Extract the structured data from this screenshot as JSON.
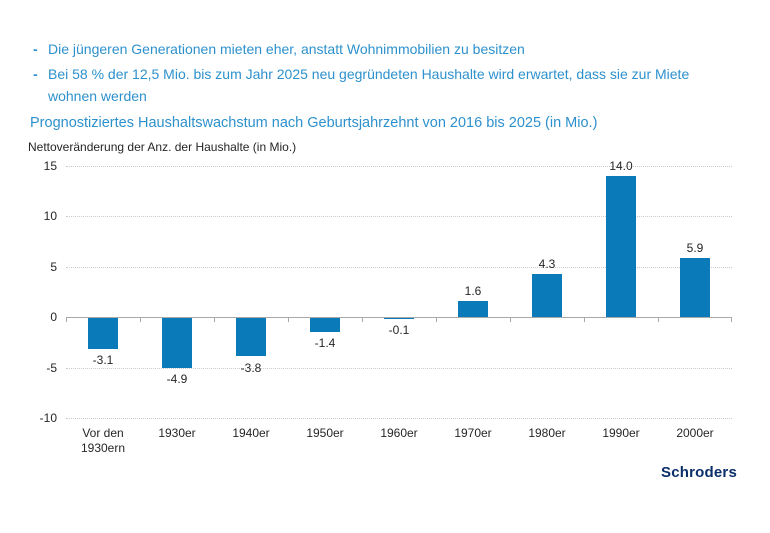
{
  "colors": {
    "background": "#ffffff",
    "text_blue": "#2d91cd",
    "bar_blue": "#0a7ab9",
    "brand_navy": "#0a2e69",
    "axis_text": "#262626",
    "gridline_gray": "#cccccc",
    "axis_gray": "#a8a8a8"
  },
  "bullets": [
    {
      "marker": "-",
      "text": "Die jüngeren Generationen mieten eher, anstatt Wohnimmobilien zu besitzen"
    },
    {
      "marker": "-",
      "text": "Bei 58 % der 12,5 Mio. bis zum Jahr 2025 neu gegründeten Haushalte wird erwartet, dass sie zur Miete wohnen werden"
    }
  ],
  "brand": {
    "logo_text": "Schroders"
  },
  "chart_data": {
    "type": "bar",
    "title": "Prognostiziertes Haushaltswachstum nach Geburtsjahrzehnt von 2016 bis 2025 (in Mio.)",
    "ylabel": "Nettoveränderung der Anz. der Haushalte (in Mio.)",
    "xlabel": "",
    "categories": [
      "Vor den 1930ern",
      "1930er",
      "1940er",
      "1950er",
      "1960er",
      "1970er",
      "1980er",
      "1990er",
      "2000er"
    ],
    "values": [
      -3.1,
      -4.9,
      -3.8,
      -1.4,
      -0.1,
      1.6,
      4.3,
      14.0,
      5.9
    ],
    "value_labels": [
      "-3.1",
      "-4.9",
      "-3.8",
      "-1.4",
      "-0.1",
      "1.6",
      "4.3",
      "14.0",
      "5.9"
    ],
    "ylim": [
      -10,
      15
    ],
    "yticks": [
      15,
      10,
      5,
      0,
      -5,
      -10
    ],
    "grid": true,
    "legend": false,
    "bar_color": "#0a7ab9"
  }
}
